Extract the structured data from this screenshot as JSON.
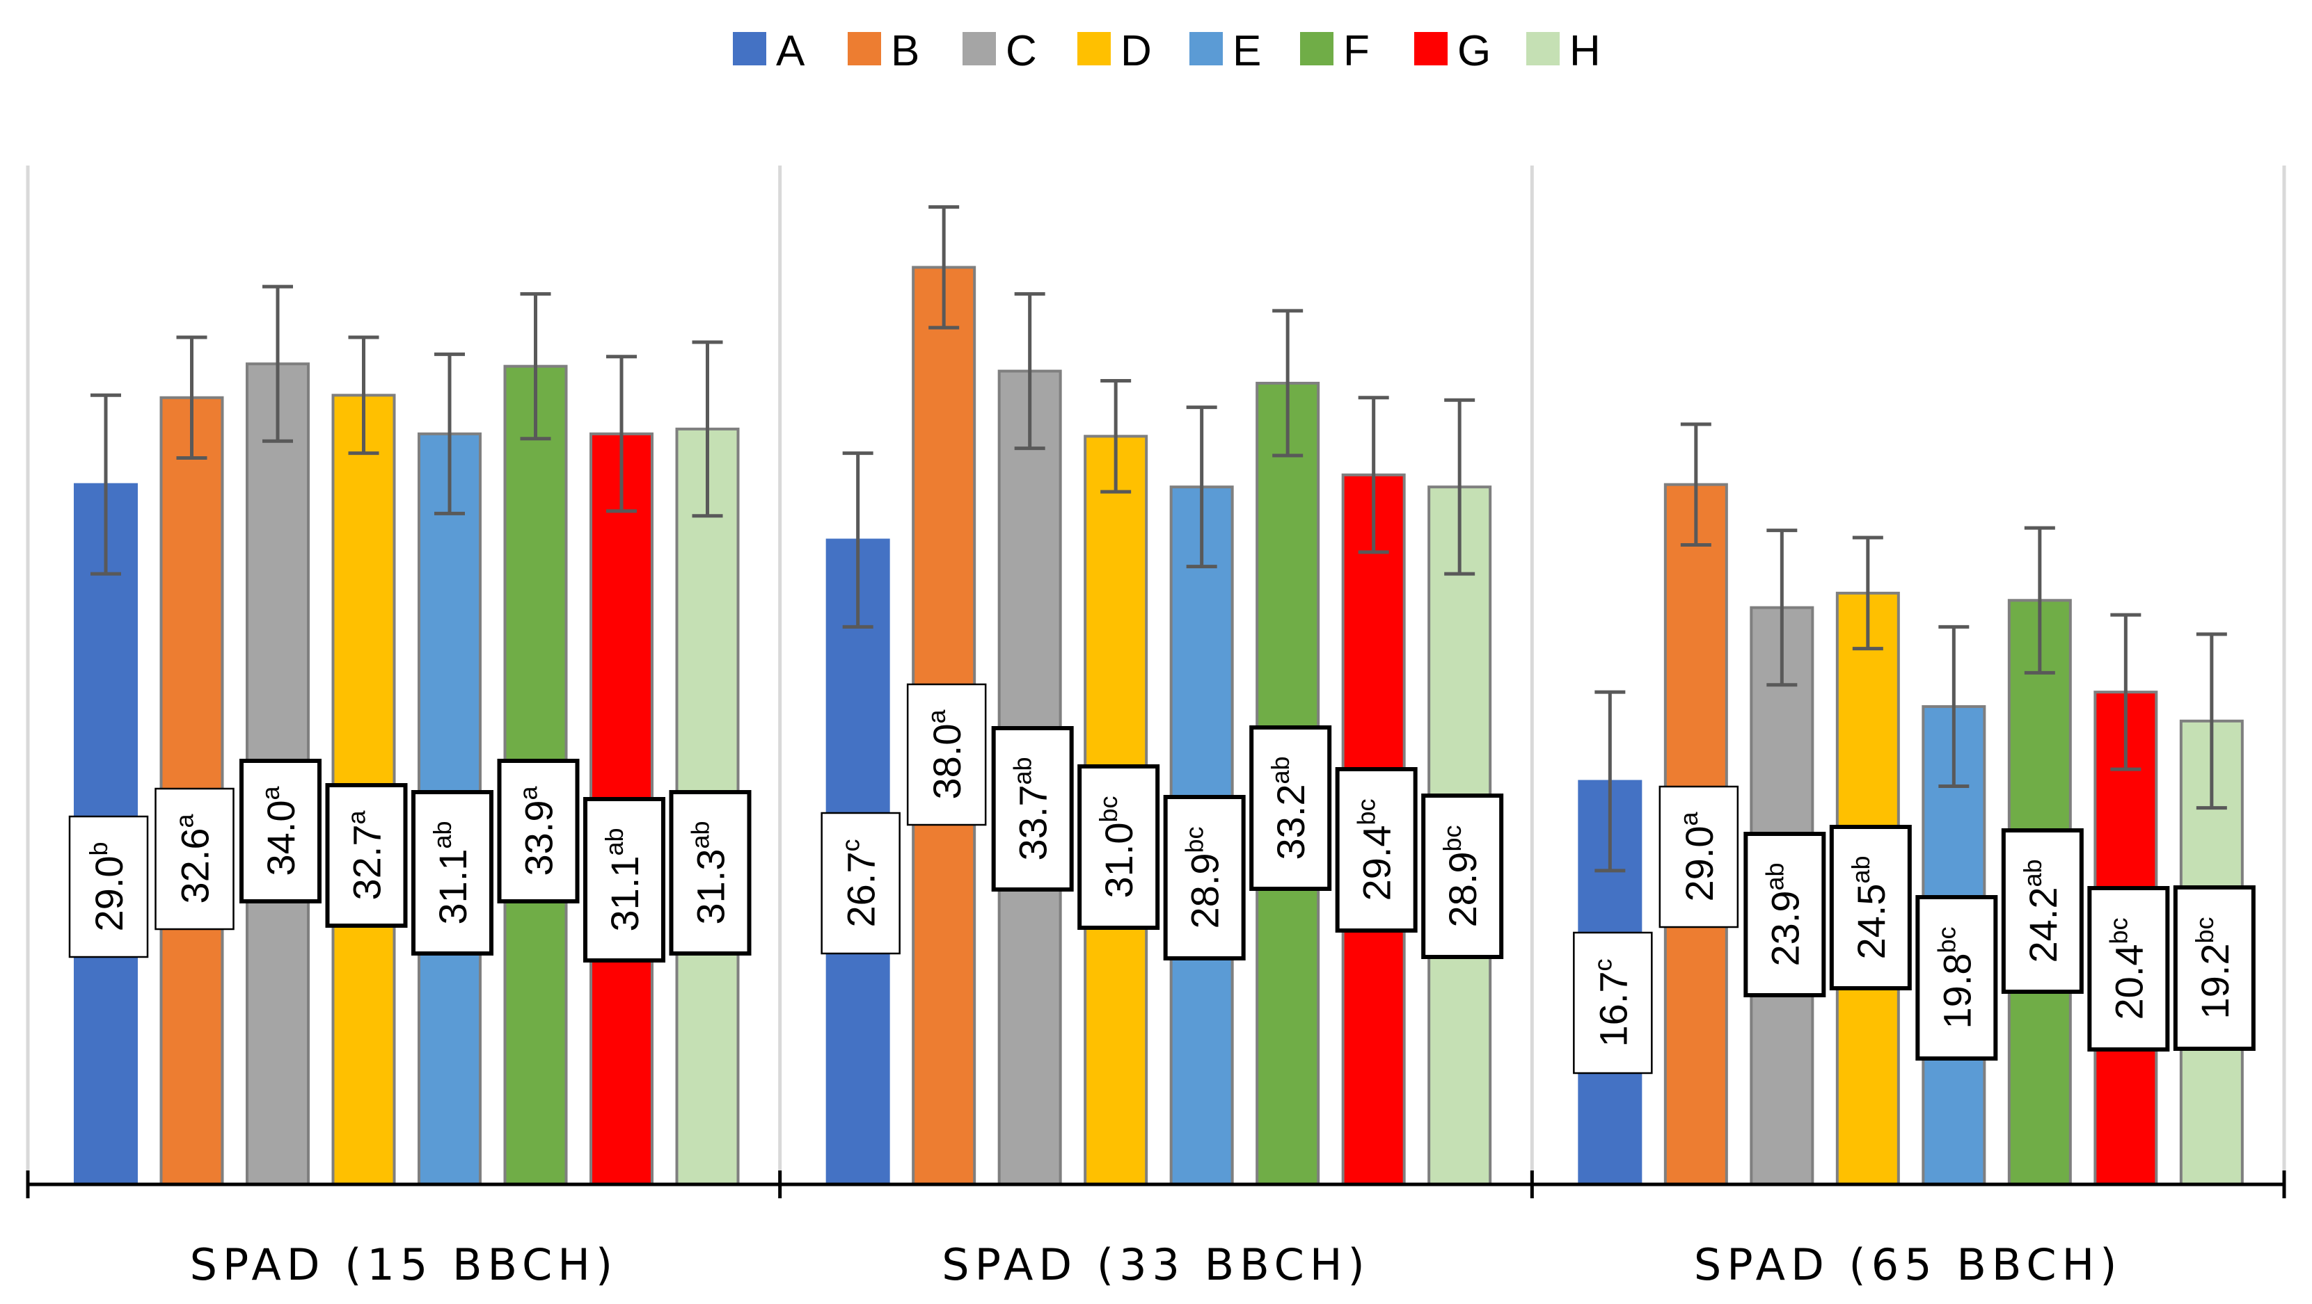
{
  "chart_data": {
    "type": "bar",
    "title": "",
    "xlabel": "",
    "ylabel": "",
    "ylim": [
      0,
      45
    ],
    "grid": false,
    "legend_position": "top",
    "categories": [
      "SPAD (15 BBCH)",
      "SPAD (33 BBCH)",
      "SPAD (65 BBCH)"
    ],
    "series": [
      {
        "name": "A",
        "color": "#4472C4",
        "border": "#4472C4",
        "values": [
          29.0,
          26.7,
          16.7
        ],
        "errors": [
          3.7,
          3.6,
          3.7
        ],
        "letters": [
          "b",
          "c",
          "c"
        ]
      },
      {
        "name": "B",
        "color": "#ED7D31",
        "border": "#7F7F7F",
        "values": [
          32.6,
          38.0,
          29.0
        ],
        "errors": [
          2.5,
          2.5,
          2.5
        ],
        "letters": [
          "a",
          "a",
          "a"
        ]
      },
      {
        "name": "C",
        "color": "#A5A5A5",
        "border": "#7F7F7F",
        "values": [
          34.0,
          33.7,
          23.9
        ],
        "errors": [
          3.2,
          3.2,
          3.2
        ],
        "letters": [
          "a",
          "ab",
          "ab"
        ]
      },
      {
        "name": "D",
        "color": "#FFC000",
        "border": "#7F7F7F",
        "values": [
          32.7,
          31.0,
          24.5
        ],
        "errors": [
          2.4,
          2.3,
          2.3
        ],
        "letters": [
          "a",
          "bc",
          "ab"
        ]
      },
      {
        "name": "E",
        "color": "#5B9BD5",
        "border": "#7F7F7F",
        "values": [
          31.1,
          28.9,
          19.8
        ],
        "errors": [
          3.3,
          3.3,
          3.3
        ],
        "letters": [
          "ab",
          "bc",
          "bc"
        ]
      },
      {
        "name": "F",
        "color": "#70AD47",
        "border": "#7F7F7F",
        "values": [
          33.9,
          33.2,
          24.2
        ],
        "errors": [
          3.0,
          3.0,
          3.0
        ],
        "letters": [
          "a",
          "ab",
          "ab"
        ]
      },
      {
        "name": "G",
        "color": "#FF0000",
        "border": "#7F7F7F",
        "values": [
          31.1,
          29.4,
          20.4
        ],
        "errors": [
          3.2,
          3.2,
          3.2
        ],
        "letters": [
          "ab",
          "bc",
          "bc"
        ]
      },
      {
        "name": "H",
        "color": "#C5E0B4",
        "border": "#7F7F7F",
        "values": [
          31.3,
          28.9,
          19.2
        ],
        "errors": [
          3.6,
          3.6,
          3.6
        ],
        "letters": [
          "ab",
          "bc",
          "bc"
        ]
      }
    ]
  }
}
